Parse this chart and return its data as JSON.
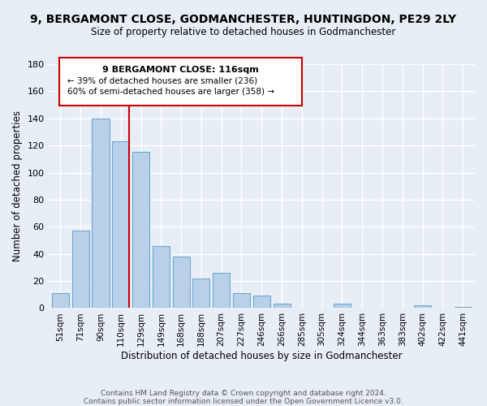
{
  "title": "9, BERGAMONT CLOSE, GODMANCHESTER, HUNTINGDON, PE29 2LY",
  "subtitle": "Size of property relative to detached houses in Godmanchester",
  "xlabel": "Distribution of detached houses by size in Godmanchester",
  "ylabel": "Number of detached properties",
  "bar_labels": [
    "51sqm",
    "71sqm",
    "90sqm",
    "110sqm",
    "129sqm",
    "149sqm",
    "168sqm",
    "188sqm",
    "207sqm",
    "227sqm",
    "246sqm",
    "266sqm",
    "285sqm",
    "305sqm",
    "324sqm",
    "344sqm",
    "363sqm",
    "383sqm",
    "402sqm",
    "422sqm",
    "441sqm"
  ],
  "bar_values": [
    11,
    57,
    140,
    123,
    115,
    46,
    38,
    22,
    26,
    11,
    9,
    3,
    0,
    0,
    3,
    0,
    0,
    0,
    2,
    0,
    1
  ],
  "bar_color": "#b8d0e8",
  "bar_edge_color": "#6fa8d0",
  "highlight_color": "#cc0000",
  "ylim": [
    0,
    180
  ],
  "yticks": [
    0,
    20,
    40,
    60,
    80,
    100,
    120,
    140,
    160,
    180
  ],
  "annotation_title": "9 BERGAMONT CLOSE: 116sqm",
  "annotation_line1": "← 39% of detached houses are smaller (236)",
  "annotation_line2": "60% of semi-detached houses are larger (358) →",
  "footnote1": "Contains HM Land Registry data © Crown copyright and database right 2024.",
  "footnote2": "Contains public sector information licensed under the Open Government Licence v3.0.",
  "background_color": "#e8eef6",
  "plot_background": "#e8eef6",
  "grid_color": "#ffffff",
  "title_fontsize": 10,
  "subtitle_fontsize": 8.5
}
